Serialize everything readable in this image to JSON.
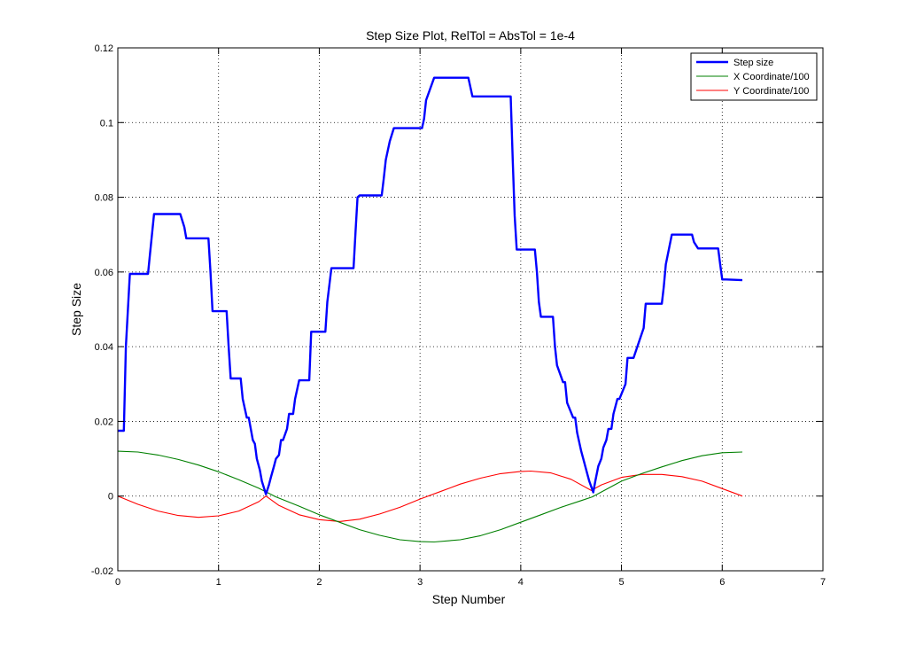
{
  "chart_data": {
    "type": "line",
    "title": "Step Size Plot, RelTol = AbsTol = 1e-4",
    "xlabel": "Step Number",
    "ylabel": "Step Size",
    "xlim": [
      0,
      7
    ],
    "ylim": [
      -0.02,
      0.12
    ],
    "xticks": [
      0,
      1,
      2,
      3,
      4,
      5,
      6,
      7
    ],
    "xtick_labels": [
      "0",
      "1",
      "2",
      "3",
      "4",
      "5",
      "6",
      "7"
    ],
    "yticks": [
      -0.02,
      0,
      0.02,
      0.04,
      0.06,
      0.08,
      0.1,
      0.12
    ],
    "ytick_labels": [
      "-0.02",
      "0",
      "0.02",
      "0.04",
      "0.06",
      "0.08",
      "0.1",
      "0.12"
    ],
    "grid": true,
    "legend_position": "top-right",
    "series": [
      {
        "name": "Step size",
        "color": "#0000ff",
        "x": [
          0.0,
          0.06,
          0.08,
          0.12,
          0.14,
          0.3,
          0.32,
          0.36,
          0.38,
          0.62,
          0.66,
          0.68,
          0.9,
          0.92,
          0.94,
          1.08,
          1.1,
          1.12,
          1.22,
          1.24,
          1.28,
          1.3,
          1.34,
          1.36,
          1.38,
          1.41,
          1.43,
          1.47,
          1.5,
          1.52,
          1.55,
          1.57,
          1.6,
          1.62,
          1.64,
          1.68,
          1.7,
          1.74,
          1.76,
          1.8,
          1.82,
          1.9,
          1.92,
          2.06,
          2.08,
          2.12,
          2.14,
          2.34,
          2.36,
          2.38,
          2.4,
          2.62,
          2.64,
          2.66,
          2.7,
          2.74,
          3.02,
          3.04,
          3.06,
          3.14,
          3.16,
          3.48,
          3.52,
          3.56,
          3.9,
          3.92,
          3.94,
          3.96,
          4.14,
          4.16,
          4.18,
          4.2,
          4.32,
          4.34,
          4.36,
          4.42,
          4.44,
          4.46,
          4.52,
          4.54,
          4.56,
          4.6,
          4.62,
          4.66,
          4.68,
          4.72,
          4.74,
          4.77,
          4.8,
          4.82,
          4.85,
          4.87,
          4.9,
          4.92,
          4.96,
          4.98,
          5.04,
          5.06,
          5.1,
          5.12,
          5.22,
          5.24,
          5.26,
          5.4,
          5.42,
          5.44,
          5.5,
          5.52,
          5.7,
          5.72,
          5.76,
          5.78,
          5.96,
          5.98,
          6.0,
          6.04,
          6.2
        ],
        "values": [
          0.0175,
          0.0175,
          0.04,
          0.0595,
          0.0595,
          0.0595,
          0.065,
          0.0755,
          0.0755,
          0.0755,
          0.072,
          0.069,
          0.069,
          0.06,
          0.0495,
          0.0495,
          0.04,
          0.0315,
          0.0315,
          0.026,
          0.021,
          0.021,
          0.015,
          0.014,
          0.01,
          0.007,
          0.004,
          0.0005,
          0.003,
          0.005,
          0.008,
          0.01,
          0.011,
          0.015,
          0.015,
          0.018,
          0.022,
          0.022,
          0.026,
          0.031,
          0.031,
          0.031,
          0.044,
          0.044,
          0.052,
          0.061,
          0.061,
          0.061,
          0.071,
          0.08,
          0.0805,
          0.0805,
          0.085,
          0.09,
          0.095,
          0.0985,
          0.0985,
          0.101,
          0.106,
          0.112,
          0.112,
          0.112,
          0.107,
          0.107,
          0.107,
          0.09,
          0.075,
          0.066,
          0.066,
          0.06,
          0.052,
          0.048,
          0.048,
          0.04,
          0.035,
          0.0305,
          0.0305,
          0.025,
          0.021,
          0.021,
          0.017,
          0.012,
          0.01,
          0.006,
          0.004,
          0.001,
          0.004,
          0.008,
          0.01,
          0.013,
          0.015,
          0.018,
          0.018,
          0.022,
          0.026,
          0.026,
          0.03,
          0.037,
          0.037,
          0.037,
          0.045,
          0.0515,
          0.0515,
          0.0515,
          0.056,
          0.062,
          0.07,
          0.07,
          0.07,
          0.068,
          0.0663,
          0.0663,
          0.0663,
          0.062,
          0.058,
          0.058,
          0.0578
        ]
      },
      {
        "name": "X Coordinate/100",
        "color": "#008000",
        "x": [
          0.0,
          0.2,
          0.4,
          0.6,
          0.8,
          1.0,
          1.2,
          1.4,
          1.57,
          1.8,
          2.0,
          2.2,
          2.4,
          2.6,
          2.8,
          3.0,
          3.14,
          3.4,
          3.6,
          3.8,
          4.0,
          4.2,
          4.4,
          4.6,
          4.71,
          5.0,
          5.2,
          5.4,
          5.6,
          5.8,
          6.0,
          6.2
        ],
        "values": [
          0.012,
          0.0118,
          0.011,
          0.0098,
          0.0083,
          0.0065,
          0.0044,
          0.0021,
          -0.0002,
          -0.0027,
          -0.005,
          -0.007,
          -0.009,
          -0.0105,
          -0.0117,
          -0.0122,
          -0.0123,
          -0.0117,
          -0.0106,
          -0.009,
          -0.007,
          -0.005,
          -0.003,
          -0.0012,
          -0.0002,
          0.004,
          0.006,
          0.0078,
          0.0095,
          0.0108,
          0.0116,
          0.0118
        ]
      },
      {
        "name": "Y Coordinate/100",
        "color": "#ff0000",
        "x": [
          0.0,
          0.2,
          0.4,
          0.6,
          0.8,
          1.0,
          1.2,
          1.4,
          1.47,
          1.6,
          1.8,
          2.0,
          2.2,
          2.4,
          2.6,
          2.8,
          3.0,
          3.2,
          3.4,
          3.6,
          3.8,
          4.0,
          4.1,
          4.3,
          4.5,
          4.7,
          4.8,
          5.0,
          5.2,
          5.4,
          5.6,
          5.8,
          6.0,
          6.2
        ],
        "values": [
          0.0,
          -0.0022,
          -0.004,
          -0.0052,
          -0.0057,
          -0.0053,
          -0.004,
          -0.0015,
          0.0,
          -0.0025,
          -0.005,
          -0.0063,
          -0.0068,
          -0.0062,
          -0.0048,
          -0.003,
          -0.0008,
          0.0012,
          0.0032,
          0.0048,
          0.006,
          0.0066,
          0.0067,
          0.0062,
          0.0045,
          0.0015,
          0.003,
          0.005,
          0.0058,
          0.0058,
          0.0052,
          0.004,
          0.002,
          0.0
        ]
      }
    ]
  }
}
